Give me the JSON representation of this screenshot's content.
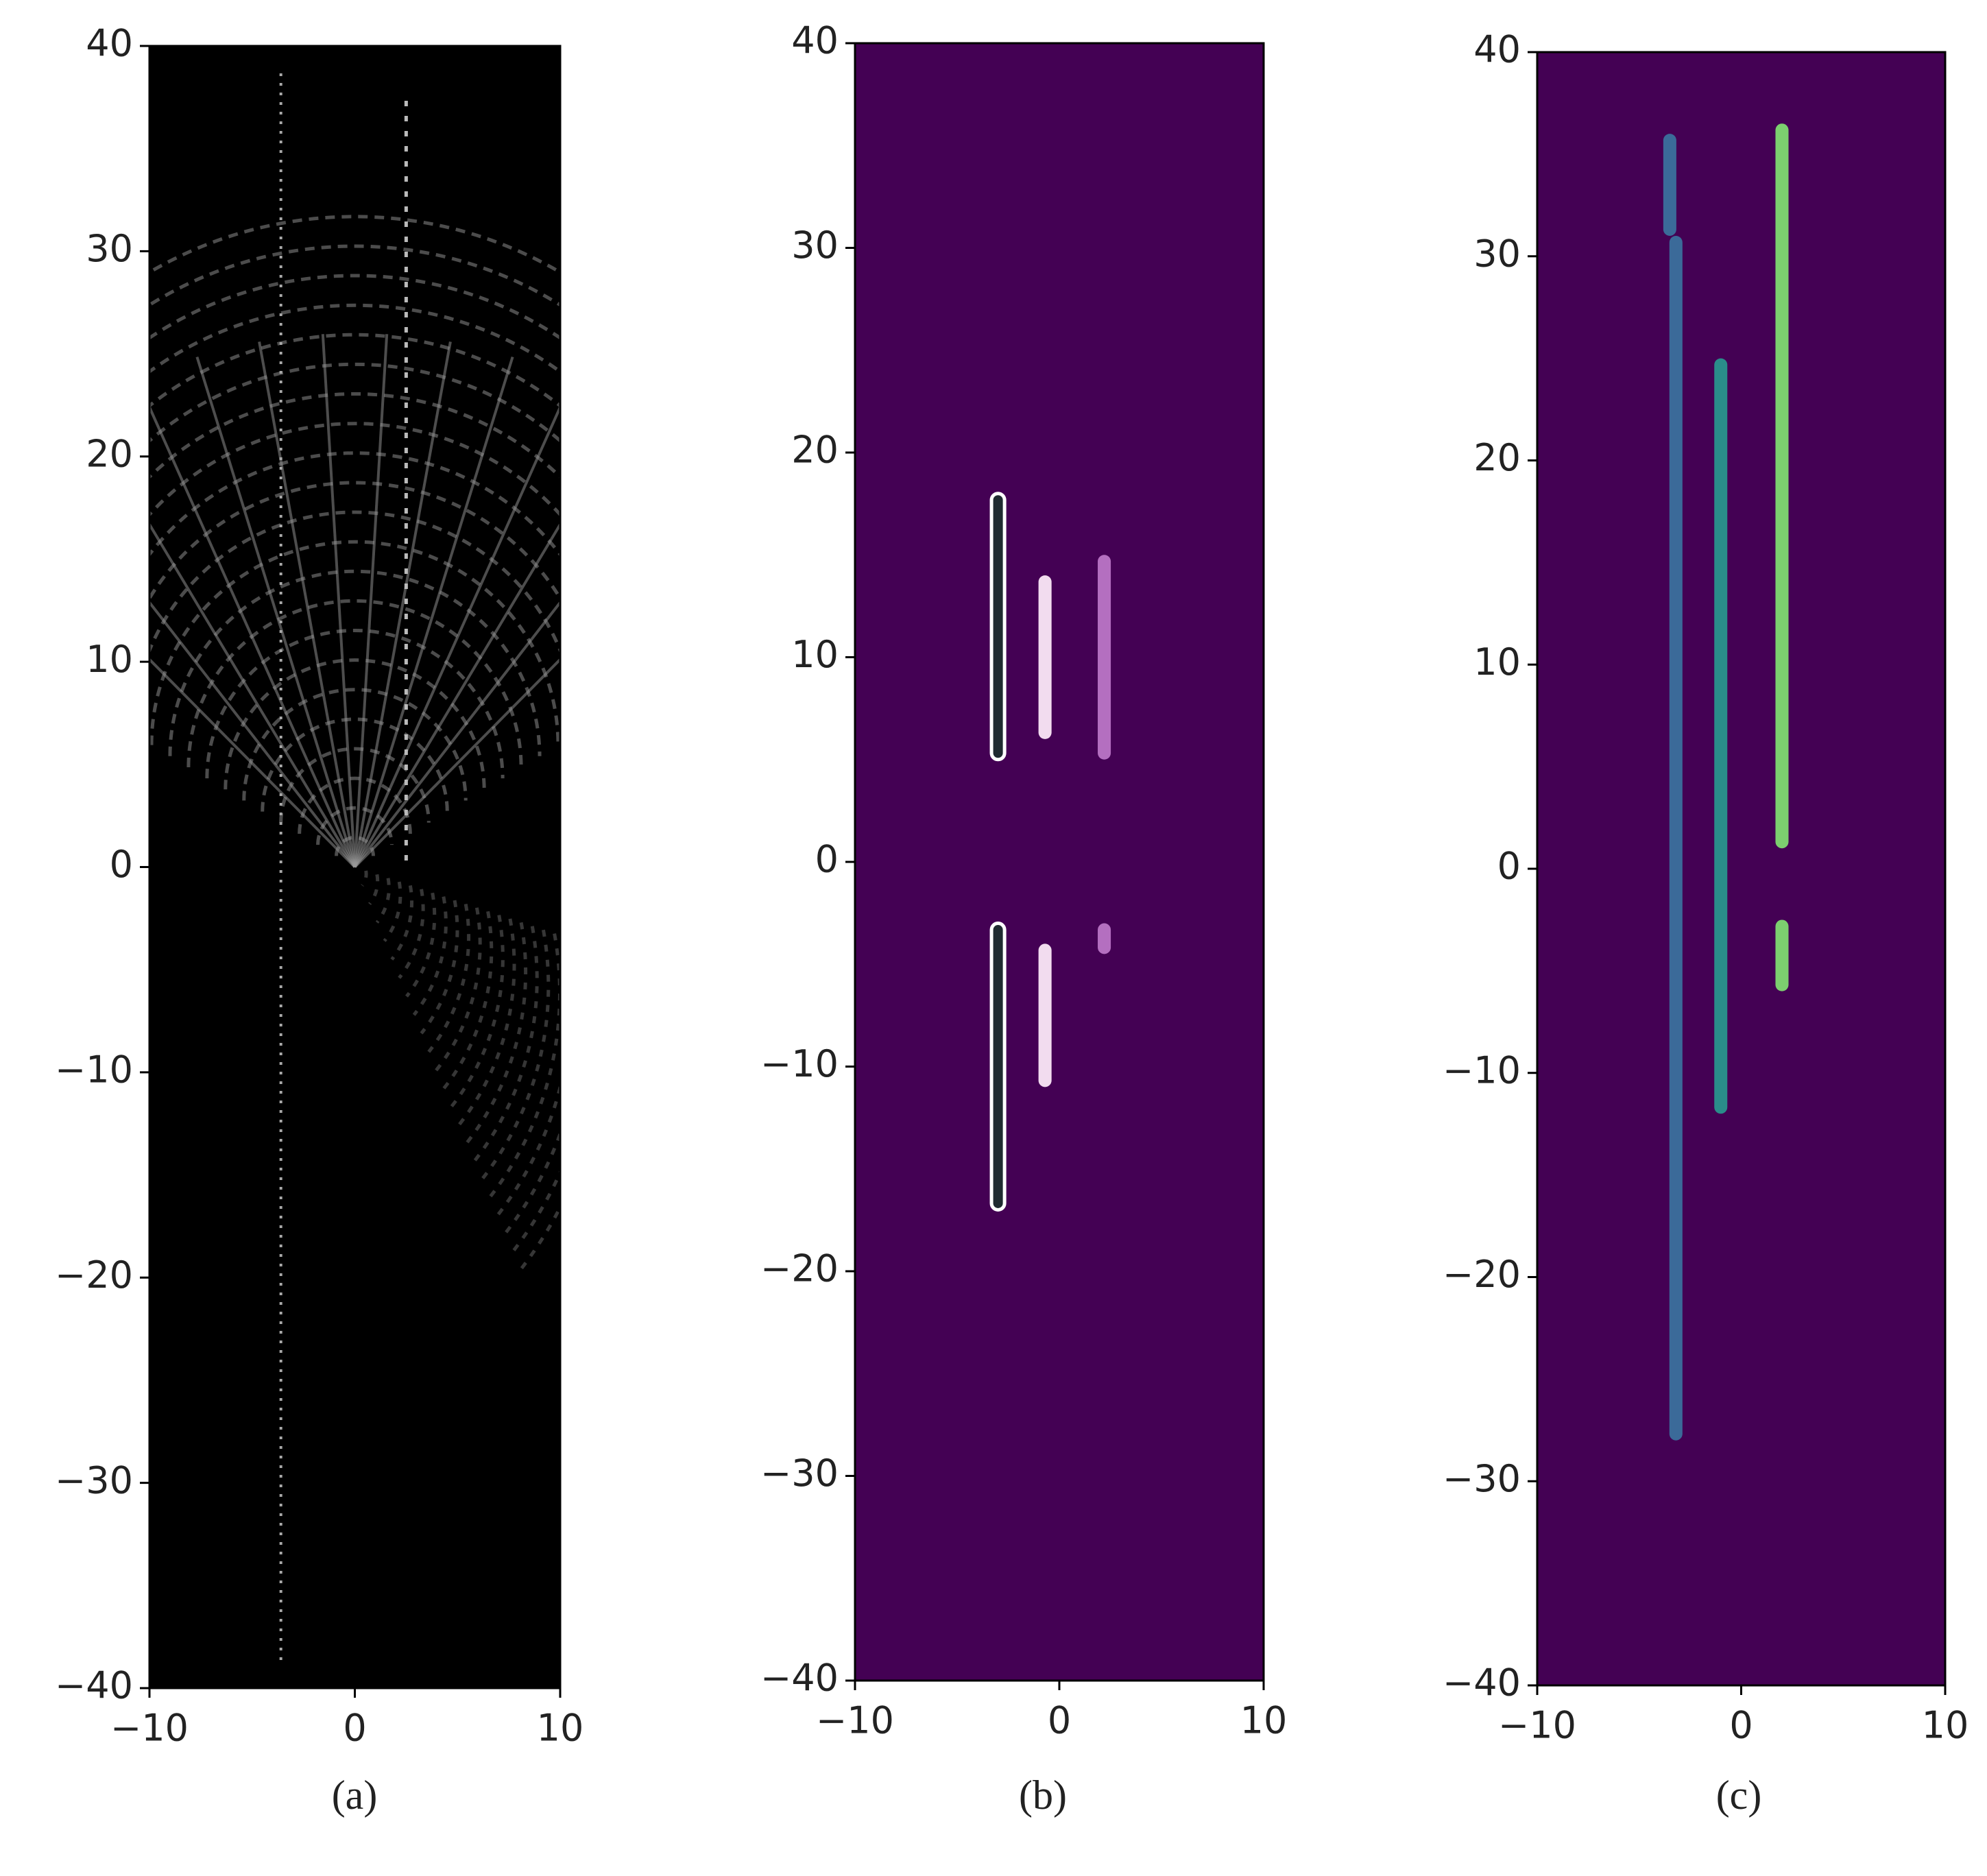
{
  "chart_data": [
    {
      "type": "image",
      "caption": "(a)",
      "background": "#000000",
      "xlim": [
        -10,
        10
      ],
      "ylim": [
        -40,
        40
      ],
      "xticks": [
        {
          "value": -10,
          "label": "−10"
        },
        0,
        10
      ],
      "yticks": [
        {
          "value": -40,
          "label": "−40"
        },
        {
          "value": -30,
          "label": "−30"
        },
        {
          "value": -20,
          "label": "−20"
        },
        {
          "value": -10,
          "label": "−10"
        },
        0,
        10,
        20,
        30,
        40
      ]
    },
    {
      "type": "segmentation",
      "caption": "(b)",
      "background": "#440154",
      "xlim": [
        -10,
        10
      ],
      "ylim": [
        -40,
        40
      ],
      "xticks": [
        {
          "value": -10,
          "label": "−10"
        },
        0,
        10
      ],
      "yticks": [
        {
          "value": -40,
          "label": "−40"
        },
        {
          "value": -30,
          "label": "−30"
        },
        {
          "value": -20,
          "label": "−20"
        },
        {
          "value": -10,
          "label": "−10"
        },
        0,
        10,
        20,
        30,
        40
      ],
      "segments": [
        {
          "x": -3,
          "y": [
            5,
            18
          ],
          "color": "#1f2a30",
          "outline": "#ffffff"
        },
        {
          "x": -0.7,
          "y": [
            6,
            14
          ],
          "color": "#f2dcef"
        },
        {
          "x": 2.2,
          "y": [
            5,
            15
          ],
          "color": "#b46fc0"
        },
        {
          "x": -3,
          "y": [
            -17,
            -3
          ],
          "color": "#1f2a30",
          "outline": "#ffffff"
        },
        {
          "x": -0.7,
          "y": [
            -11,
            -4
          ],
          "color": "#f2dcef"
        },
        {
          "x": 2.2,
          "y": [
            -4.5,
            -3
          ],
          "color": "#b46fc0"
        }
      ]
    },
    {
      "type": "segmentation",
      "caption": "(c)",
      "background": "#440154",
      "xlim": [
        -10,
        10
      ],
      "ylim": [
        -40,
        40
      ],
      "xticks": [
        {
          "value": -10,
          "label": "−10"
        },
        0,
        10
      ],
      "yticks": [
        {
          "value": -40,
          "label": "−40"
        },
        {
          "value": -30,
          "label": "−30"
        },
        {
          "value": -20,
          "label": "−20"
        },
        {
          "value": -10,
          "label": "−10"
        },
        0,
        10,
        20,
        30,
        40
      ],
      "segments": [
        {
          "x": -3.5,
          "y": [
            31,
            36
          ],
          "color": "#3b6a99"
        },
        {
          "x": -3.2,
          "y": [
            -28,
            31
          ],
          "color": "#3b6a99"
        },
        {
          "x": -1,
          "y": [
            -12,
            25
          ],
          "color": "#2a8c8a"
        },
        {
          "x": 2,
          "y": [
            1,
            36.5
          ],
          "color": "#7ccf6f"
        },
        {
          "x": 2,
          "y": [
            -6,
            -2.5
          ],
          "color": "#7ccf6f"
        }
      ]
    }
  ]
}
